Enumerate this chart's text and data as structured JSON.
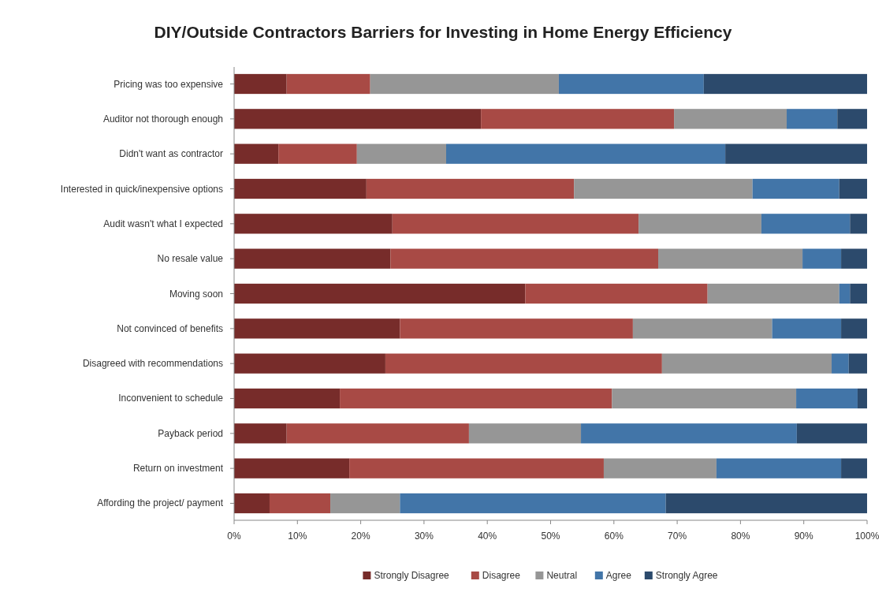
{
  "chart_data": {
    "type": "bar",
    "orientation": "horizontal",
    "stacked": true,
    "title": "DIY/Outside Contractors Barriers for Investing in Home Energy Efficiency",
    "categories": [
      "Pricing was too expensive",
      "Auditor not thorough enough",
      "Didn't want as contractor",
      "Interested in quick/inexpensive options",
      "Audit wasn't what I expected",
      "No resale value",
      "Moving soon",
      "Not convinced of benefits",
      "Disagreed with recommendations",
      "Inconvenient to schedule",
      "Payback period",
      "Return on investment",
      "Affording the project/ payment"
    ],
    "series": [
      {
        "name": "Strongly Disagree",
        "color": "#772c2a",
        "values": [
          8.3,
          39,
          7,
          20.9,
          25,
          24.7,
          46,
          26.2,
          23.9,
          16.7,
          8.3,
          18.2,
          5.6
        ]
      },
      {
        "name": "Disagree",
        "color": "#a84a45",
        "values": [
          13.2,
          30.5,
          12.4,
          32.8,
          38.9,
          42.3,
          28.8,
          36.8,
          43.7,
          43,
          28.8,
          40.2,
          9.6
        ]
      },
      {
        "name": "Neutral",
        "color": "#969696",
        "values": [
          29.8,
          17.8,
          14.1,
          28.2,
          19.4,
          22.8,
          20.8,
          22,
          26.8,
          29.1,
          17.7,
          17.8,
          11
        ]
      },
      {
        "name": "Agree",
        "color": "#4275a8",
        "values": [
          22.9,
          8,
          44.1,
          13.7,
          14,
          6.1,
          1.7,
          10.9,
          2.7,
          9.7,
          34.1,
          19.7,
          42
        ]
      },
      {
        "name": "Strongly Agree",
        "color": "#2c4a6c",
        "values": [
          25.8,
          4.7,
          22.4,
          4.4,
          2.7,
          4.1,
          2.7,
          4.1,
          2.9,
          1.5,
          11.1,
          4.1,
          31.8
        ]
      }
    ],
    "xlim": [
      0,
      100
    ],
    "xticks": [
      {
        "value": 0,
        "label": "0%"
      },
      {
        "value": 10,
        "label": "10%"
      },
      {
        "value": 20,
        "label": "20%"
      },
      {
        "value": 30,
        "label": "30%"
      },
      {
        "value": 40,
        "label": "40%"
      },
      {
        "value": 50,
        "label": "50%"
      },
      {
        "value": 60,
        "label": "60%"
      },
      {
        "value": 70,
        "label": "70%"
      },
      {
        "value": 80,
        "label": "80%"
      },
      {
        "value": 90,
        "label": "90%"
      },
      {
        "value": 100,
        "label": "100%"
      }
    ],
    "grid": false,
    "legend": "bottom"
  }
}
